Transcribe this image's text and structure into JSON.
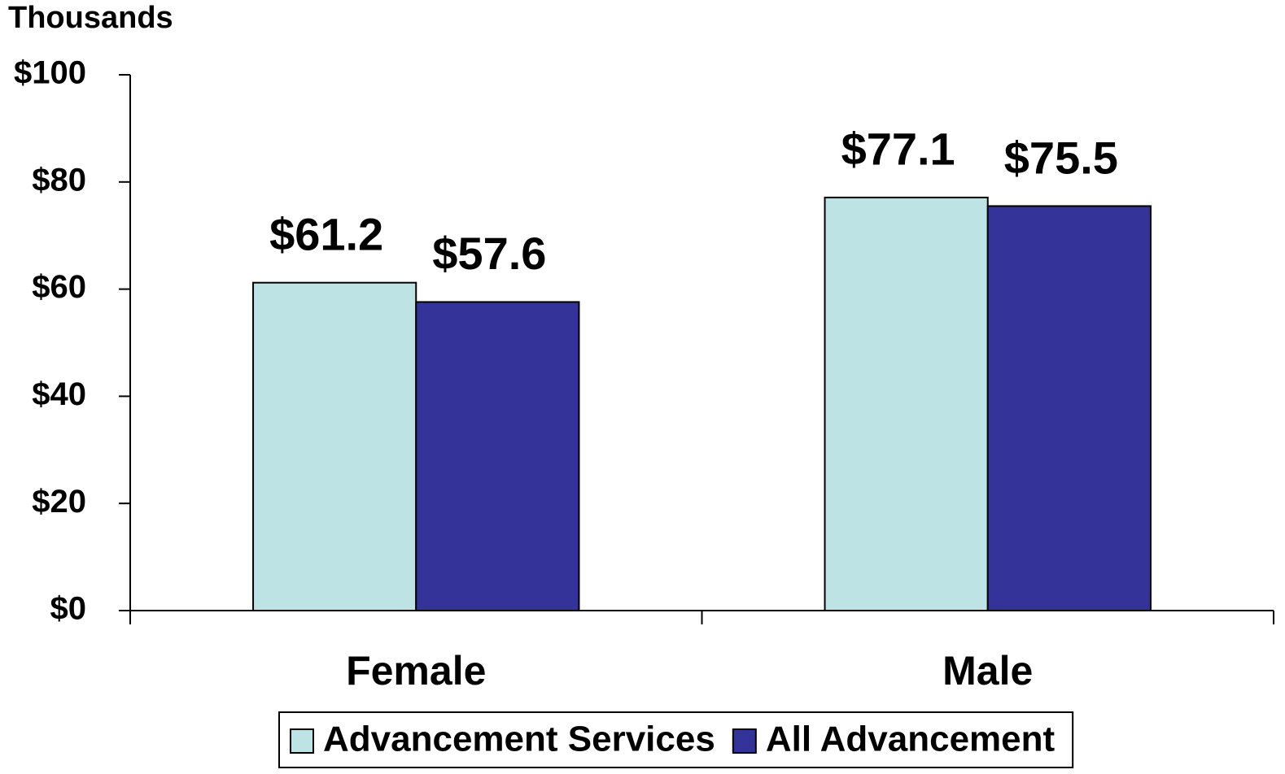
{
  "chart_data": {
    "type": "bar",
    "y_axis_label": "Thousands",
    "categories": [
      "Female",
      "Male"
    ],
    "series": [
      {
        "name": "Advancement Services",
        "color": "#bde3e4",
        "values": [
          61.2,
          77.1
        ],
        "value_labels": [
          "$61.2",
          "$77.1"
        ]
      },
      {
        "name": "All Advancement",
        "color": "#333399",
        "values": [
          57.6,
          75.5
        ],
        "value_labels": [
          "$57.6",
          "$75.5"
        ]
      }
    ],
    "ylim": [
      0,
      100
    ],
    "yticks": [
      {
        "value": 0,
        "label": "$0"
      },
      {
        "value": 20,
        "label": "$20"
      },
      {
        "value": 40,
        "label": "$40"
      },
      {
        "value": 60,
        "label": "$60"
      },
      {
        "value": 80,
        "label": "$80"
      },
      {
        "value": 100,
        "label": "$100"
      }
    ],
    "grid": false,
    "legend": "bottom"
  }
}
